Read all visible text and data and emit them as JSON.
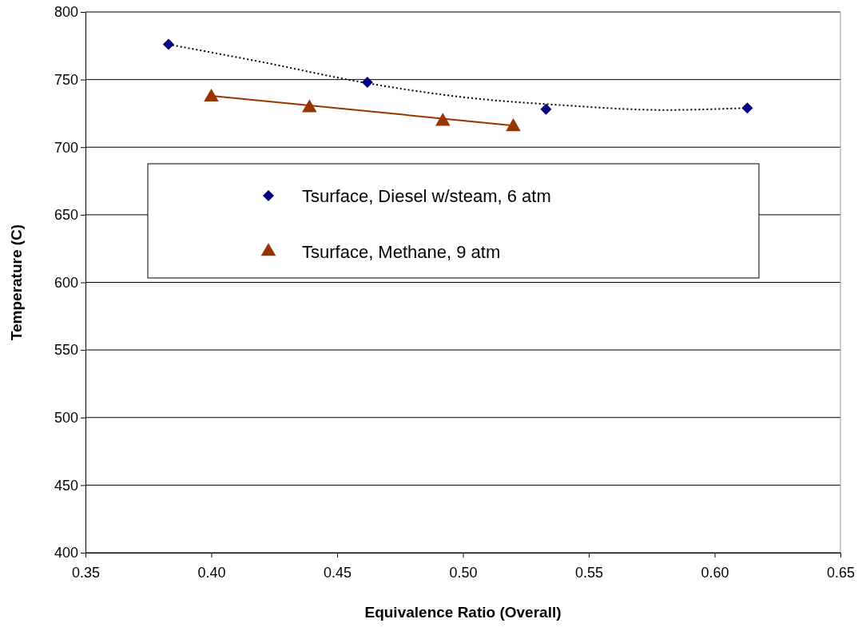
{
  "chart_data": {
    "type": "scatter",
    "xlabel": "Equivalence Ratio (Overall)",
    "ylabel": "Temperature (C)",
    "xlim": [
      0.35,
      0.65
    ],
    "xticks": [
      {
        "value": 0.35,
        "label": "0.35"
      },
      {
        "value": 0.4,
        "label": "0.40"
      },
      {
        "value": 0.45,
        "label": "0.45"
      },
      {
        "value": 0.5,
        "label": "0.50"
      },
      {
        "value": 0.55,
        "label": "0.55"
      },
      {
        "value": 0.6,
        "label": "0.60"
      },
      {
        "value": 0.65,
        "label": "0.65"
      }
    ],
    "ylim": [
      400,
      800
    ],
    "yticks": [
      400,
      450,
      500,
      550,
      600,
      650,
      700,
      750,
      800
    ],
    "grid": "y",
    "legend": "top",
    "series": [
      {
        "name": "Tsurface, Diesel w/steam, 6 atm",
        "type": "scatter",
        "marker": "diamond",
        "color": "#000080",
        "x": [
          0.383,
          0.462,
          0.533,
          0.613
        ],
        "values": [
          776,
          748,
          728,
          729
        ]
      },
      {
        "name": "Tsurface, Methane, 9 atm",
        "type": "scatter",
        "marker": "triangle",
        "color": "#993300",
        "x": [
          0.4,
          0.439,
          0.492,
          0.52
        ],
        "values": [
          737,
          729,
          719,
          715
        ]
      },
      {
        "type": "line",
        "marker": "none",
        "line_style": "dotted",
        "color": "#000000",
        "x": [
          0.383,
          0.42,
          0.46,
          0.5,
          0.54,
          0.58,
          0.613
        ],
        "values": [
          776,
          763,
          748,
          737,
          731,
          727.5,
          729
        ]
      },
      {
        "type": "line",
        "marker": "none",
        "line_style": "solid",
        "color": "#993300",
        "x": [
          0.4,
          0.52
        ],
        "values": [
          738,
          716
        ]
      }
    ]
  }
}
